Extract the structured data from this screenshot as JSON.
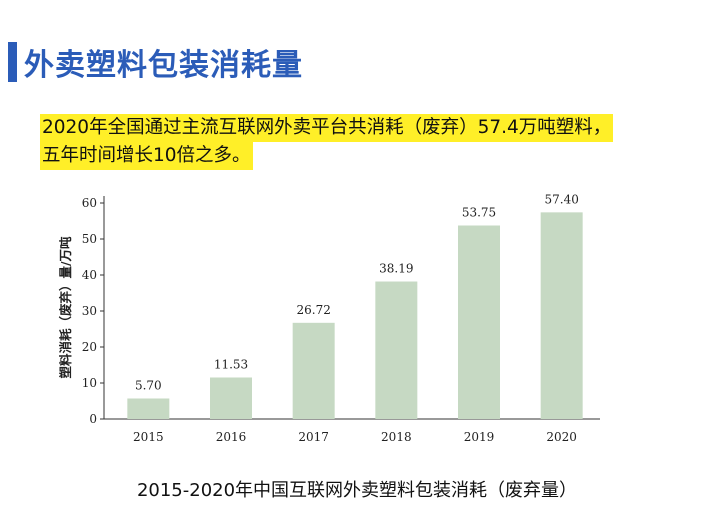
{
  "slide": {
    "title": "外卖塑料包装消耗量",
    "highlight_lines": [
      "2020年全国通过主流互联网外卖平台共消耗（废弃）57.4万吨塑料，",
      "五年时间增长10倍之多。"
    ],
    "caption": "2015-2020年中国互联网外卖塑料包装消耗（废弃量）"
  },
  "colors": {
    "accent": "#2b5cb8",
    "highlight": "#ffef28",
    "bar": "#c6d9c3",
    "axis": "#333333"
  },
  "chart_data": {
    "type": "bar",
    "categories": [
      "2015",
      "2016",
      "2017",
      "2018",
      "2019",
      "2020"
    ],
    "values": [
      5.7,
      11.53,
      26.72,
      38.19,
      53.75,
      57.4
    ],
    "value_labels": [
      "5.70",
      "11.53",
      "26.72",
      "38.19",
      "53.75",
      "57.40"
    ],
    "ylabel": "塑料消耗（废弃）量/万吨",
    "xlabel": "",
    "ylim": [
      0,
      60
    ],
    "yticks": [
      0,
      10,
      20,
      30,
      40,
      50,
      60
    ],
    "grid": false
  }
}
